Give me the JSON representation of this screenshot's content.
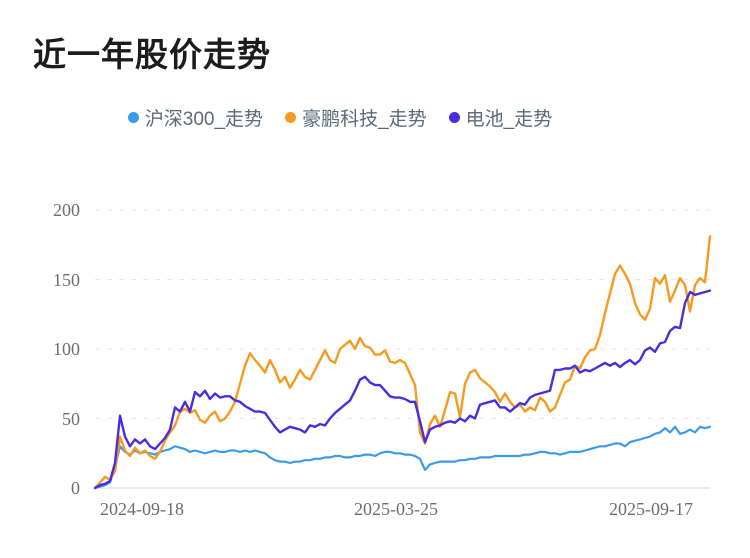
{
  "page": {
    "title": "近一年股价走势"
  },
  "legend": {
    "items": [
      {
        "label": "沪深300_走势",
        "color": "#3B9BEA"
      },
      {
        "label": "豪鹏科技_走势",
        "color": "#F59B22"
      },
      {
        "label": "电池_走势",
        "color": "#4B2DE1"
      }
    ]
  },
  "chart_data": {
    "type": "line",
    "title": "近一年股价走势",
    "xlabel": "",
    "ylabel": "",
    "x_tick_labels": [
      "2024-09-18",
      "2025-03-25",
      "2025-09-17"
    ],
    "x_range": [
      "2024-09-18",
      "2025-09-17"
    ],
    "ylim": [
      0,
      200
    ],
    "yticks": [
      0,
      50,
      100,
      150,
      200
    ],
    "grid": "horizontal-dashed",
    "legend_position": "top-center",
    "series": [
      {
        "name": "沪深300_走势",
        "color": "#3B9BEA",
        "values": [
          0,
          1,
          2,
          4,
          15,
          30,
          26,
          24,
          27,
          25,
          26,
          25,
          24,
          26,
          27,
          28,
          30,
          29,
          28,
          26,
          27,
          26,
          25,
          26,
          27,
          26,
          26,
          27,
          27,
          26,
          27,
          26,
          27,
          26,
          25,
          22,
          20,
          19,
          19,
          18,
          19,
          19,
          20,
          20,
          21,
          21,
          22,
          22,
          23,
          23,
          22,
          22,
          23,
          23,
          24,
          24,
          23,
          25,
          26,
          26,
          25,
          25,
          24,
          24,
          23,
          21,
          13,
          17,
          18,
          19,
          19,
          19,
          19,
          20,
          20,
          21,
          21,
          22,
          22,
          22,
          23,
          23,
          23,
          23,
          23,
          23,
          24,
          24,
          25,
          26,
          26,
          25,
          25,
          24,
          25,
          26,
          26,
          26,
          27,
          28,
          29,
          30,
          30,
          31,
          32,
          32,
          30,
          33,
          34,
          35,
          36,
          37,
          39,
          40,
          43,
          40,
          44,
          39,
          40,
          42,
          40,
          44,
          43,
          44
        ]
      },
      {
        "name": "豪鹏科技_走势",
        "color": "#F59B22",
        "values": [
          0,
          4,
          8,
          6,
          12,
          37,
          27,
          23,
          29,
          25,
          27,
          23,
          21,
          26,
          34,
          40,
          45,
          55,
          57,
          54,
          56,
          49,
          47,
          52,
          55,
          48,
          50,
          55,
          62,
          75,
          88,
          97,
          92,
          88,
          83,
          92,
          85,
          76,
          80,
          72,
          78,
          85,
          80,
          78,
          85,
          92,
          99,
          92,
          90,
          100,
          103,
          106,
          100,
          108,
          102,
          101,
          96,
          96,
          99,
          91,
          90,
          92,
          90,
          82,
          74,
          40,
          32,
          46,
          52,
          44,
          56,
          69,
          68,
          51,
          75,
          83,
          85,
          79,
          76,
          73,
          69,
          62,
          68,
          62,
          58,
          60,
          55,
          58,
          56,
          65,
          62,
          55,
          58,
          67,
          76,
          78,
          88,
          86,
          94,
          99,
          100,
          110,
          126,
          140,
          154,
          160,
          154,
          147,
          133,
          125,
          121,
          129,
          151,
          147,
          153,
          134,
          142,
          151,
          146,
          127,
          146,
          151,
          148,
          181
        ]
      },
      {
        "name": "电池_走势",
        "color": "#4B2DE1",
        "values": [
          0,
          2,
          3,
          5,
          18,
          52,
          37,
          30,
          35,
          32,
          35,
          30,
          28,
          32,
          36,
          42,
          58,
          55,
          62,
          55,
          69,
          66,
          70,
          64,
          68,
          65,
          66,
          66,
          63,
          62,
          59,
          57,
          55,
          55,
          54,
          49,
          44,
          40,
          42,
          44,
          43,
          42,
          40,
          45,
          44,
          46,
          45,
          50,
          54,
          57,
          60,
          63,
          70,
          78,
          80,
          76,
          74,
          74,
          70,
          66,
          65,
          65,
          64,
          62,
          62,
          48,
          33,
          42,
          44,
          45,
          47,
          48,
          47,
          50,
          48,
          52,
          50,
          60,
          61,
          62,
          63,
          58,
          58,
          55,
          58,
          61,
          60,
          65,
          67,
          68,
          69,
          70,
          85,
          85,
          86,
          86,
          88,
          83,
          85,
          84,
          86,
          88,
          90,
          88,
          90,
          87,
          90,
          92,
          89,
          92,
          99,
          101,
          98,
          104,
          105,
          113,
          116,
          115,
          133,
          141,
          139,
          140,
          141,
          142
        ]
      }
    ]
  }
}
